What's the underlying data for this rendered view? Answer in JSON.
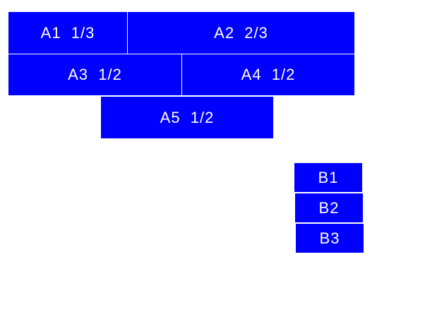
{
  "group_a": {
    "a1": "A1  1/3",
    "a2": "A2  2/3",
    "a3": "A3  1/2",
    "a4": "A4  1/2",
    "a5": "A5  1/2"
  },
  "group_b": {
    "b1": "B1",
    "b2": "B2",
    "b3": "B3"
  },
  "colors": {
    "box_fill": "#0000ff",
    "text": "#ffffff"
  }
}
